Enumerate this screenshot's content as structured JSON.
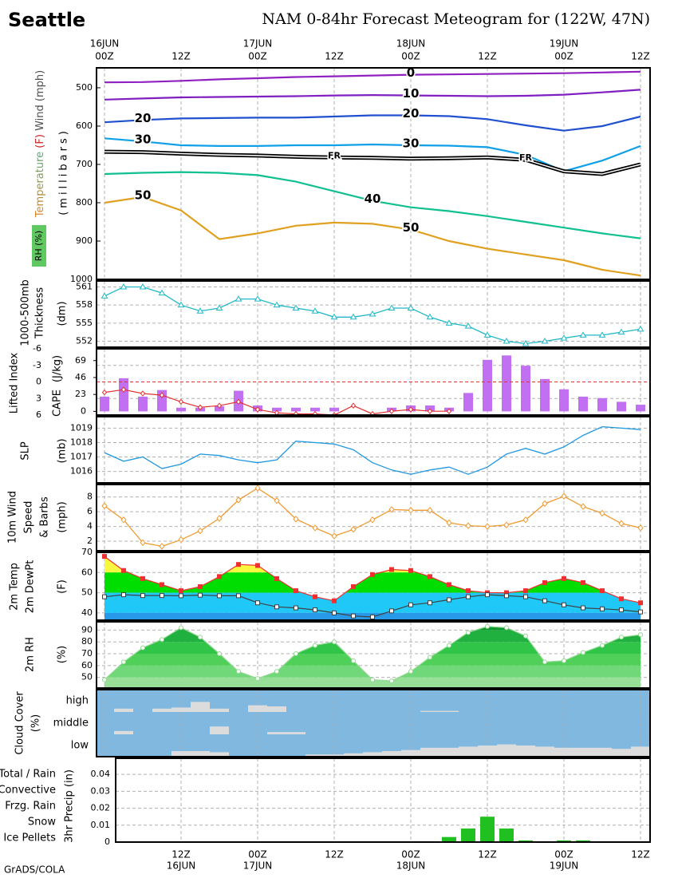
{
  "header": {
    "city": "Seattle",
    "title": "NAM 0-84hr Forecast Meteogram for (122W, 47N)"
  },
  "footer": "GrADS/COLA",
  "time_axis": {
    "xlim": [
      0,
      84
    ],
    "xticks": [
      {
        "value": 0,
        "label": "00Z"
      },
      {
        "value": 12,
        "label": "12Z"
      },
      {
        "value": 24,
        "label": "00Z"
      },
      {
        "value": 36,
        "label": "12Z"
      },
      {
        "value": 48,
        "label": "00Z"
      },
      {
        "value": 60,
        "label": "12Z"
      },
      {
        "value": 72,
        "label": "00Z"
      },
      {
        "value": 84,
        "label": "12Z"
      }
    ],
    "dates": [
      {
        "value": 0,
        "label": "16JUN"
      },
      {
        "value": 24,
        "label": "17JUN"
      },
      {
        "value": 48,
        "label": "18JUN"
      },
      {
        "value": 72,
        "label": "19JUN"
      }
    ],
    "x": [
      0,
      3,
      6,
      9,
      12,
      15,
      18,
      21,
      24,
      27,
      30,
      33,
      36,
      39,
      42,
      45,
      48,
      51,
      54,
      57,
      60,
      63,
      66,
      69,
      72,
      75,
      78,
      81,
      84
    ]
  },
  "chart_data": [
    {
      "type": "contour",
      "label_parts": [
        "Temperature",
        "(F)",
        "Wind (mph)"
      ],
      "ylabel": "(millibars)",
      "rh_label": "RH (%)",
      "x": [
        0,
        6,
        12,
        18,
        24,
        30,
        36,
        42,
        48,
        54,
        60,
        66,
        72,
        78,
        84
      ],
      "ylim": [
        1000,
        448
      ],
      "yticks": [
        500,
        600,
        700,
        800,
        900,
        1000
      ],
      "series": [
        {
          "name": "0",
          "color": "#9020c0",
          "values": [
            486,
            485,
            482,
            478,
            475,
            472,
            470,
            468,
            466,
            465,
            464,
            463,
            462,
            460,
            458
          ]
        },
        {
          "name": "10",
          "color": "#8020c0",
          "values": [
            531,
            528,
            525,
            524,
            523,
            522,
            520,
            519,
            520,
            521,
            522,
            521,
            518,
            512,
            505
          ]
        },
        {
          "name": "20",
          "color": "#2050d0",
          "values": [
            590,
            584,
            580,
            579,
            578,
            578,
            575,
            572,
            572,
            574,
            582,
            598,
            612,
            600,
            575
          ]
        },
        {
          "name": "30",
          "color": "#10a0e8",
          "values": [
            632,
            640,
            650,
            652,
            652,
            650,
            650,
            648,
            650,
            651,
            655,
            675,
            718,
            690,
            652
          ]
        },
        {
          "name": "40",
          "color": "#10c090",
          "values": [
            725,
            722,
            720,
            722,
            728,
            745,
            770,
            795,
            812,
            822,
            835,
            850,
            865,
            880,
            893
          ]
        },
        {
          "name": "50",
          "color": "#e0a020",
          "values": [
            800,
            785,
            820,
            895,
            880,
            860,
            852,
            855,
            870,
            900,
            920,
            935,
            950,
            975,
            990
          ]
        },
        {
          "name": "FR",
          "color": "#000000",
          "values": [
            667,
            668,
            672,
            675,
            677,
            680,
            682,
            683,
            685,
            684,
            682,
            688,
            718,
            725,
            700
          ]
        }
      ]
    },
    {
      "type": "line",
      "label_parts": [
        "1000-500mb",
        "Thickness"
      ],
      "ylabel": "(dm)",
      "color": "#20b8c8",
      "marker": "triangle",
      "ylim": [
        551,
        562
      ],
      "yticks": [
        552,
        555,
        558,
        561
      ],
      "values": [
        559.5,
        561,
        561,
        560,
        558,
        557,
        557.5,
        559,
        559,
        558,
        557.5,
        557,
        556,
        556,
        556.5,
        557.5,
        557.5,
        556,
        555,
        554.5,
        553,
        552,
        551.6,
        552,
        552.5,
        553,
        553,
        553.5,
        554
      ]
    },
    {
      "type": "cape_li",
      "ylabel": "(J/kg)",
      "ylim": [
        6,
        -6
      ],
      "yticks": [
        -6,
        -3,
        0,
        3,
        6
      ],
      "y2lim": [
        -5,
        85
      ],
      "y2ticks": [
        0,
        23,
        46,
        69
      ],
      "hline": 0,
      "series": [
        {
          "name": "CAPE",
          "color": "#c070f0",
          "axis": "y2",
          "values": [
            20,
            45,
            20,
            29,
            5,
            5,
            7,
            28,
            8,
            5,
            5,
            5,
            5,
            0,
            0,
            5,
            8,
            8,
            5,
            25,
            70,
            76,
            62,
            44,
            30,
            20,
            18,
            13,
            9
          ]
        },
        {
          "name": "Lifted Index",
          "color": "#e03030",
          "values": [
            1.9,
            1.4,
            2.1,
            2.4,
            3.6,
            4.6,
            4.3,
            3.6,
            5.0,
            5.6,
            5.8,
            5.8,
            6.0,
            4.3,
            5.8,
            5.3,
            5.0,
            5.3,
            5.3,
            null,
            null,
            null,
            null,
            null,
            null,
            null,
            null,
            null,
            null
          ]
        }
      ]
    },
    {
      "type": "line",
      "label_parts": [
        "SLP"
      ],
      "ylabel": "(mb)",
      "color": "#2098e0",
      "ylim": [
        1015.2,
        1019.8
      ],
      "yticks": [
        1016,
        1017,
        1018,
        1019
      ],
      "values": [
        1017.3,
        1016.7,
        1017.0,
        1016.2,
        1016.5,
        1017.2,
        1017.1,
        1016.8,
        1016.6,
        1016.8,
        1018.1,
        1018.0,
        1017.9,
        1017.5,
        1016.6,
        1016.1,
        1015.8,
        1016.1,
        1016.3,
        1015.8,
        1016.3,
        1017.2,
        1017.6,
        1017.2,
        1017.7,
        1018.5,
        1019.1,
        1019.0,
        1018.9
      ]
    },
    {
      "type": "line",
      "label_parts": [
        "10m Wind",
        "Speed",
        "& Barbs"
      ],
      "ylabel": "(mph)",
      "color": "#f09a30",
      "marker": "diamond",
      "ylim": [
        0.7,
        9.7
      ],
      "yticks": [
        2,
        4,
        6,
        8
      ],
      "values": [
        6.8,
        4.9,
        1.8,
        1.3,
        2.2,
        3.4,
        5.1,
        7.6,
        9.2,
        7.5,
        5.0,
        3.8,
        2.7,
        3.6,
        4.9,
        6.3,
        6.2,
        6.2,
        4.5,
        4.1,
        4.0,
        4.2,
        4.9,
        7.1,
        8.1,
        6.7,
        5.8,
        4.4,
        3.8
      ]
    },
    {
      "type": "temp_dew",
      "ylabel": "(F)",
      "ylim": [
        36.4,
        70
      ],
      "yticks": [
        40,
        50,
        60,
        70
      ],
      "fill_bands": [
        {
          "min": 60,
          "color": "#f8f840"
        },
        {
          "min": 50,
          "color": "#00dd00"
        },
        {
          "min": 40,
          "color": "#20c8f8"
        },
        {
          "color": "#2898e8"
        }
      ],
      "series": [
        {
          "name": "2m Temp",
          "color": "#f03030",
          "values": [
            68,
            61,
            57,
            54,
            51,
            53,
            58,
            64,
            63.5,
            57,
            51,
            48,
            46,
            53,
            59,
            61.5,
            61,
            58,
            54,
            51,
            50,
            50,
            51,
            55,
            57,
            55,
            51,
            47,
            45
          ]
        },
        {
          "name": "2m DewPt",
          "color": "#404040",
          "values": [
            48,
            49,
            48.6,
            48.6,
            48.5,
            48.8,
            48.5,
            48.5,
            45,
            43,
            42.5,
            41.5,
            40,
            38.5,
            38,
            41,
            44,
            45,
            46.5,
            48,
            49,
            48.5,
            48,
            46,
            44,
            42.5,
            42,
            41.5,
            40.5
          ]
        }
      ]
    },
    {
      "type": "rh",
      "label_parts": [
        "2m RH"
      ],
      "ylabel": "(%)",
      "color": "#90d890",
      "ylim": [
        41,
        97
      ],
      "yticks": [
        50,
        60,
        70,
        80,
        90
      ],
      "fill_bands": [
        {
          "min": 90,
          "color": "#109830"
        },
        {
          "min": 80,
          "color": "#20b040"
        },
        {
          "min": 70,
          "color": "#30c448"
        },
        {
          "min": 60,
          "color": "#50d058"
        },
        {
          "min": 50,
          "color": "#70d878"
        },
        {
          "color": "#98e098"
        }
      ],
      "values": [
        48,
        63,
        75,
        82,
        92,
        84,
        70,
        55,
        49,
        55,
        70,
        77,
        80,
        64,
        48,
        47,
        55,
        67,
        77,
        88,
        93,
        92,
        85,
        63,
        64,
        71,
        77,
        84,
        86
      ]
    },
    {
      "type": "cloud",
      "label_parts": [
        "Cloud Cover"
      ],
      "ylabel": "(%)",
      "categories": [
        "high",
        "middle",
        "low"
      ],
      "background": "#80b8e0",
      "color": "#dcdcdc",
      "values": [
        [
          0,
          15,
          0,
          15,
          20,
          45,
          15,
          0,
          30,
          25,
          0,
          0,
          0,
          0,
          0,
          0,
          0,
          5,
          5,
          0,
          0,
          0,
          0,
          0,
          0,
          0,
          0,
          0,
          0
        ],
        [
          0,
          15,
          0,
          0,
          0,
          0,
          35,
          0,
          0,
          10,
          10,
          0,
          0,
          0,
          0,
          0,
          0,
          0,
          0,
          0,
          0,
          0,
          0,
          0,
          0,
          0,
          0,
          0,
          0
        ],
        [
          0,
          0,
          0,
          0,
          25,
          25,
          20,
          0,
          0,
          0,
          0,
          10,
          10,
          15,
          20,
          25,
          30,
          40,
          40,
          45,
          50,
          55,
          50,
          45,
          40,
          40,
          40,
          35,
          45
        ]
      ]
    },
    {
      "type": "bar",
      "ylabel": "3hr Precip (in)",
      "color": "#20c020",
      "ylim": [
        0,
        0.0495
      ],
      "yticks": [
        0,
        0.01,
        0.02,
        0.03,
        0.04
      ],
      "legend": [
        {
          "name": "Total / Rain",
          "color": "#20c020"
        },
        {
          "name": "Convective",
          "color": "#e02020"
        },
        {
          "name": "Frzg. Rain",
          "color": "#f09a30"
        },
        {
          "name": "Snow",
          "color": "#2060f0"
        },
        {
          "name": "Ice Pellets",
          "color": "#20d0e0"
        }
      ],
      "values": [
        0,
        0,
        0,
        0,
        0,
        0,
        0,
        0,
        0,
        0,
        0,
        0,
        0,
        0,
        0,
        0,
        0,
        0,
        0.003,
        0.008,
        0.015,
        0.008,
        0.001,
        0,
        0.001,
        0.001,
        0,
        0,
        0
      ]
    }
  ]
}
